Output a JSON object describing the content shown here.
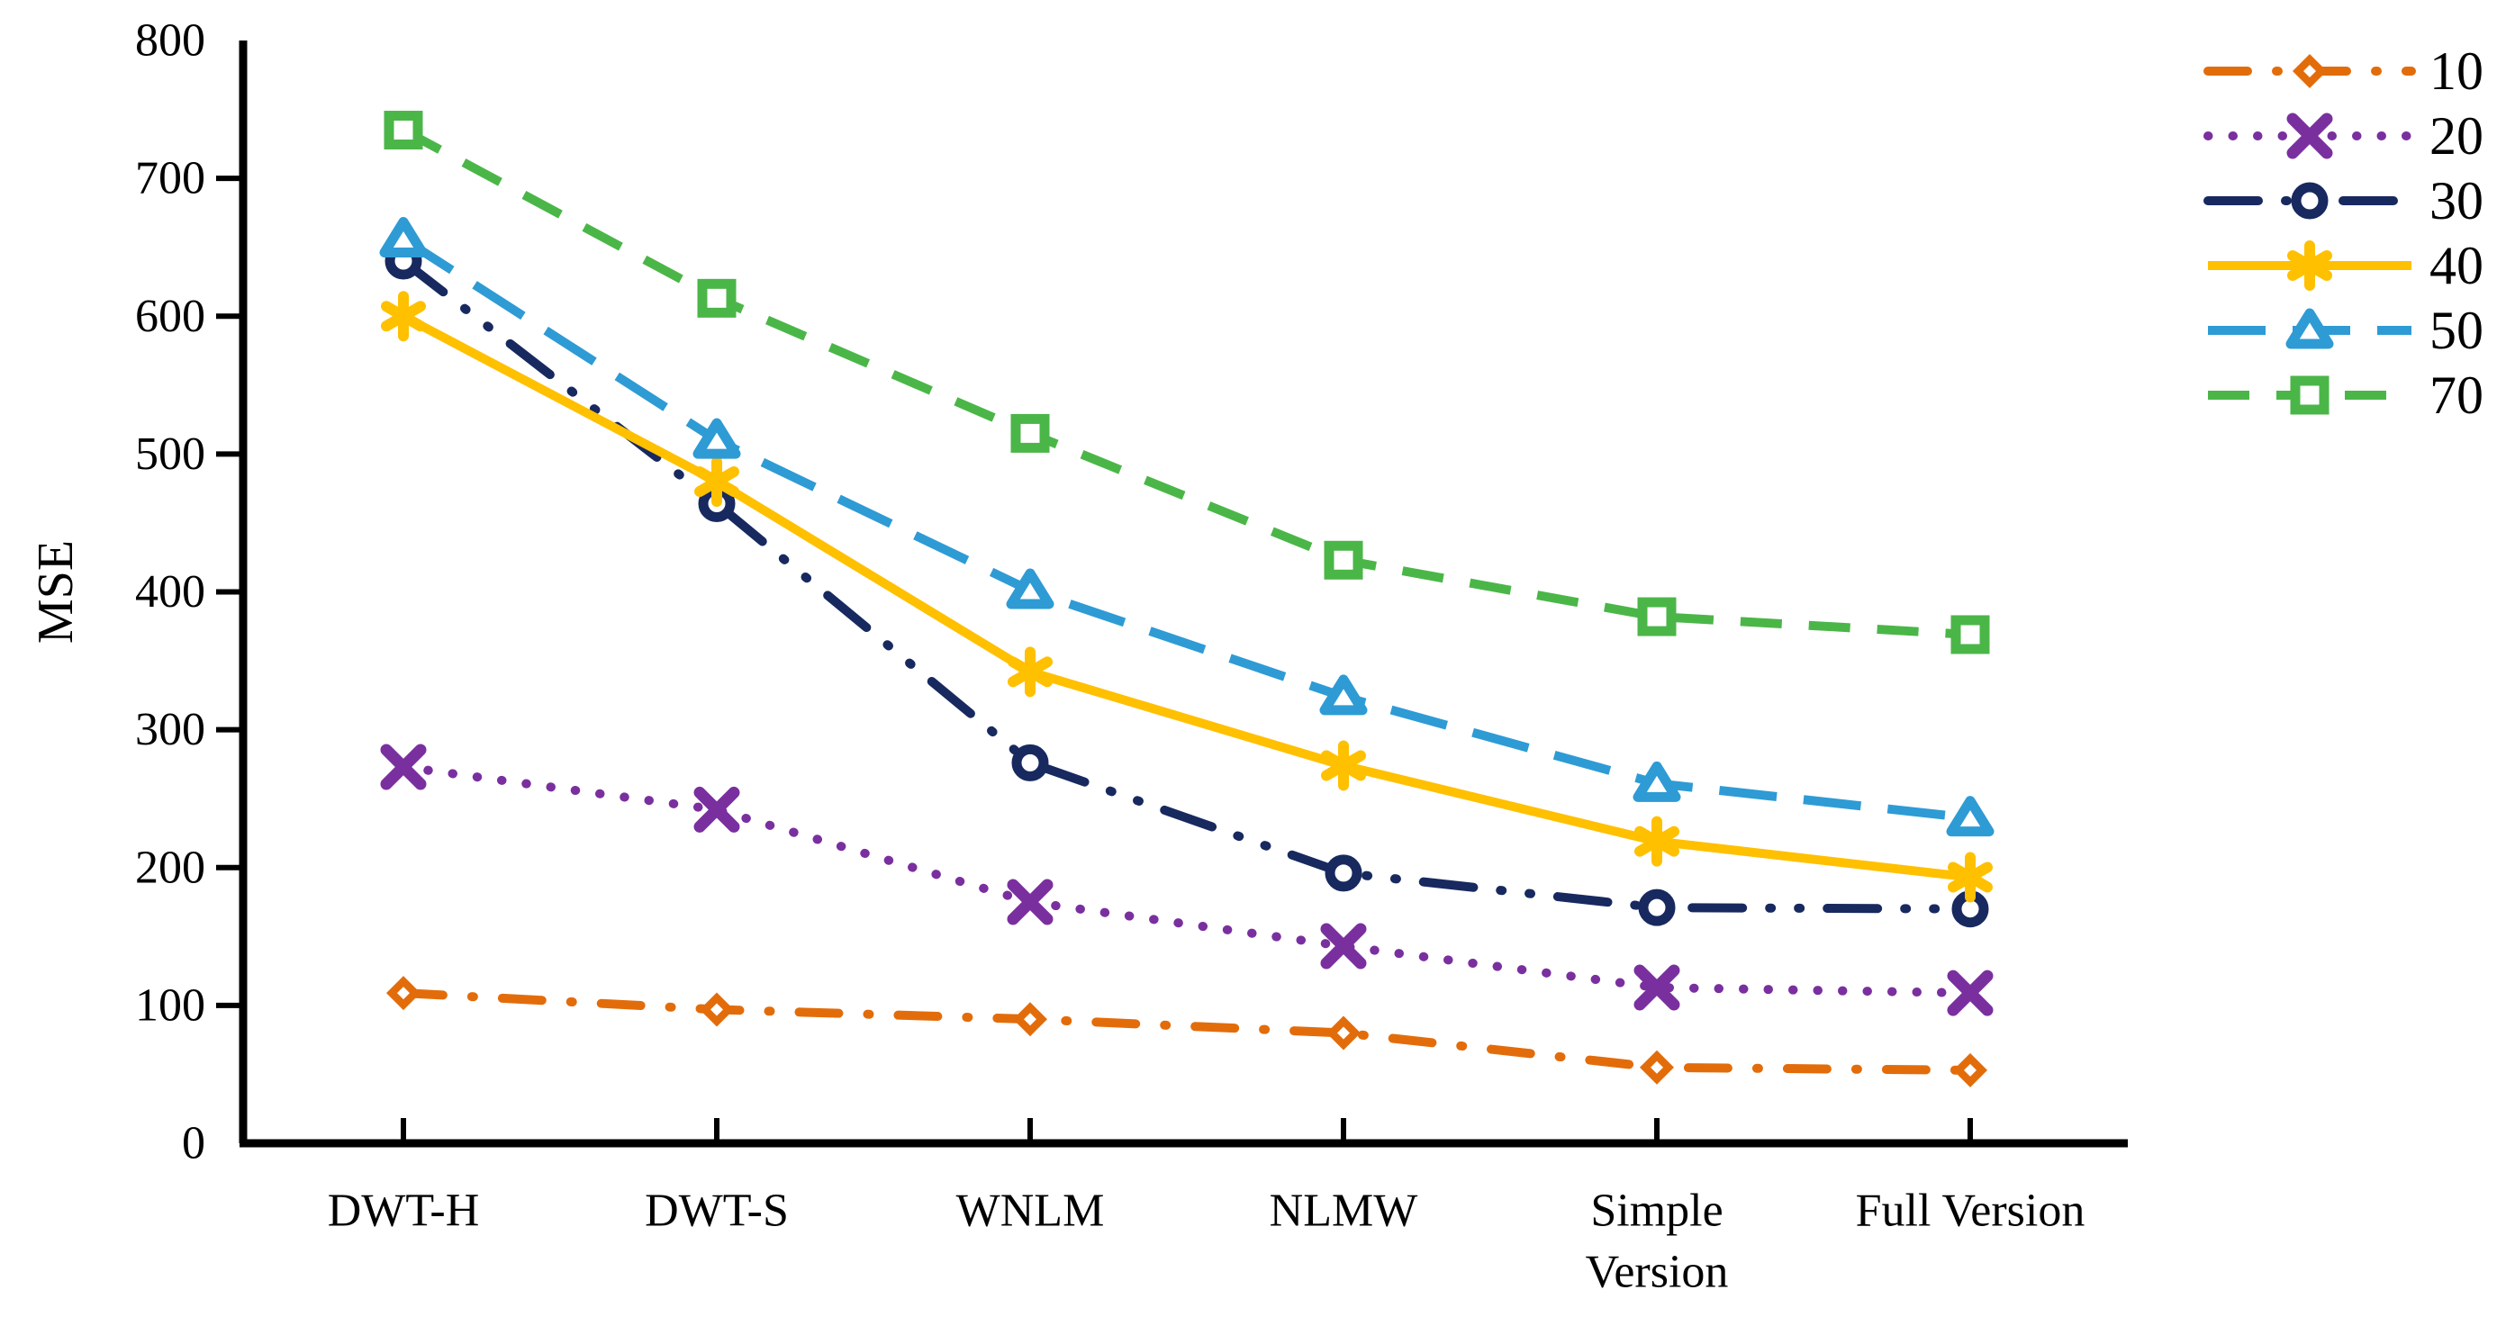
{
  "figure": {
    "background": "#ffffff",
    "text_color": "#000000"
  },
  "chart_data": {
    "type": "line",
    "title": "",
    "xlabel": "",
    "ylabel": "MSE",
    "ylim": [
      0,
      800
    ],
    "ytick_step": 100,
    "ytick_labels": [
      "0",
      "100",
      "200",
      "300",
      "400",
      "500",
      "600",
      "700",
      "800"
    ],
    "grid": false,
    "legend_position": "top-right",
    "categories": [
      "DWT-H",
      "DWT-S",
      "WNLM",
      "NLMW",
      "Simple Version",
      "Full Version"
    ],
    "category_display": [
      [
        "DWT-H"
      ],
      [
        "DWT-S"
      ],
      [
        "WNLM"
      ],
      [
        "NLMW"
      ],
      [
        "Simple",
        "Version"
      ],
      [
        "Full Version"
      ]
    ],
    "series": [
      {
        "name": "10",
        "color": "#E36C0A",
        "marker": "diamond",
        "line_style": "dash-dot",
        "values": [
          109,
          97,
          90,
          80,
          55,
          53
        ]
      },
      {
        "name": "20",
        "color": "#7A2F9F",
        "marker": "x",
        "line_style": "dotted",
        "values": [
          273,
          242,
          175,
          143,
          113,
          109
        ]
      },
      {
        "name": "30",
        "color": "#17295F",
        "marker": "circle-open",
        "line_style": "dash-dot-dot",
        "values": [
          640,
          464,
          276,
          196,
          171,
          170
        ]
      },
      {
        "name": "40",
        "color": "#FFC000",
        "marker": "asterisk",
        "line_style": "solid",
        "values": [
          600,
          480,
          342,
          274,
          219,
          193
        ]
      },
      {
        "name": "50",
        "color": "#2E9BD5",
        "marker": "triangle-open",
        "line_style": "long-dash",
        "values": [
          656,
          510,
          401,
          324,
          261,
          236
        ]
      },
      {
        "name": "70",
        "color": "#4BB648",
        "marker": "square-open",
        "line_style": "dash",
        "values": [
          735,
          613,
          515,
          423,
          382,
          369
        ]
      }
    ]
  }
}
